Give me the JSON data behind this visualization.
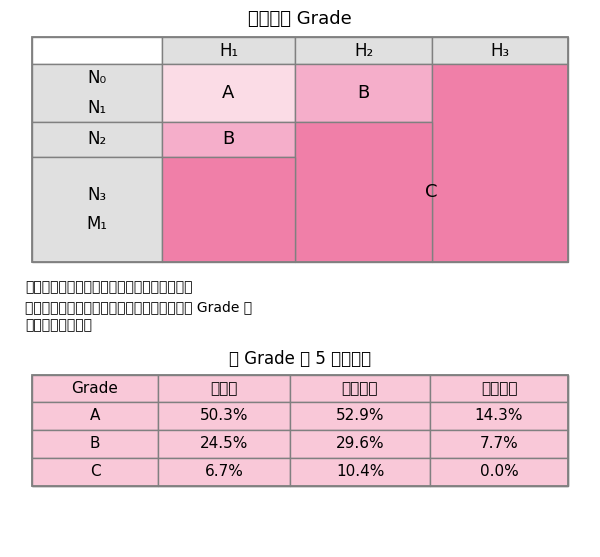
{
  "title1": "肝転移の Grade",
  "title2": "各 Grade の 5 年生存率",
  "note1": "注１：Ｎは原発巣のリンパ節転移度である。",
  "note2": "注２：原発巣のリンパ節転移が不明の場合は Grade を",
  "note3": "　　　決めない。",
  "color_A": "#FBDCE6",
  "color_B": "#F5AECA",
  "color_C": "#F07FA8",
  "color_white": "#FFFFFF",
  "color_light_gray": "#E0E0E0",
  "color_border": "#808080",
  "color_bottom_pink": "#F9C8D8",
  "bg_color": "#FFFFFF",
  "header_H": [
    "H₁",
    "H₂",
    "H₃"
  ],
  "row_labels": [
    "N₀\nN₁",
    "N₂",
    "N₃\nM₁"
  ],
  "bottom_headers": [
    "Grade",
    "全症例",
    "肝切除例",
    "非切除例"
  ],
  "bottom_rows": [
    [
      "A",
      "50.3%",
      "52.9%",
      "14.3%"
    ],
    [
      "B",
      "24.5%",
      "29.6%",
      "7.7%"
    ],
    [
      "C",
      "6.7%",
      "10.4%",
      "0.0%"
    ]
  ]
}
